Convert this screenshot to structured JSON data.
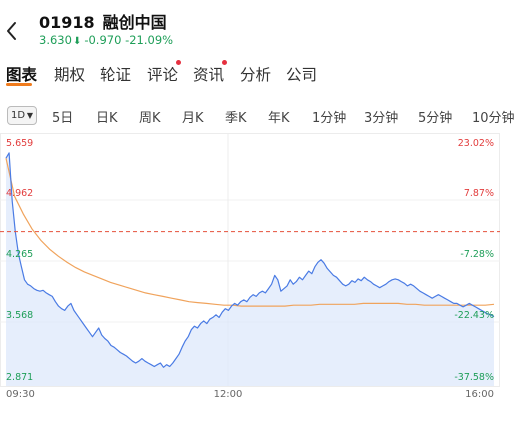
{
  "header": {
    "back_icon": "chevron-left-icon",
    "code": "01918",
    "name": "融创中国",
    "price": "3.630",
    "change": "-0.970",
    "change_pct": "-21.09%",
    "quote_color": "#1e9e58"
  },
  "tabs": [
    {
      "label": "图表",
      "active": true
    },
    {
      "label": "期权"
    },
    {
      "label": "轮证"
    },
    {
      "label": "评论",
      "dot": true
    },
    {
      "label": "资讯",
      "dot": true
    },
    {
      "label": "分析"
    },
    {
      "label": "公司"
    }
  ],
  "period_selector": {
    "label": "1D"
  },
  "periods": [
    "5日",
    "日K",
    "周K",
    "月K",
    "季K",
    "年K",
    "1分钟",
    "3分钟",
    "5分钟",
    "10分钟"
  ],
  "colors": {
    "price_line": "#4a7be4",
    "price_fill": "#dde8fb",
    "avg_line": "#f0a35c",
    "prev_close_line": "#e5513b",
    "up": "#e23c3c",
    "down": "#1e9e58",
    "accent": "#f07b1c"
  },
  "chart_data": {
    "type": "line",
    "x_labels": [
      "09:30",
      "12:00",
      "16:00"
    ],
    "y_labels_left": [
      "5.659",
      "4.962",
      "4.265",
      "3.568",
      "2.871"
    ],
    "y_labels_right": [
      "23.02%",
      "7.87%",
      "-7.28%",
      "-22.43%",
      "-37.58%"
    ],
    "ylim": [
      2.871,
      5.659
    ],
    "prev_close": 4.6,
    "series": [
      {
        "values": [
          5.44,
          5.5,
          4.95,
          4.6,
          4.35,
          4.2,
          4.05,
          4.0,
          3.98,
          3.95,
          3.93,
          3.92,
          3.93,
          3.9,
          3.88,
          3.86,
          3.8,
          3.75,
          3.72,
          3.7,
          3.75,
          3.78,
          3.7,
          3.65,
          3.6,
          3.55,
          3.5,
          3.45,
          3.4,
          3.45,
          3.5,
          3.42,
          3.38,
          3.35,
          3.3,
          3.28,
          3.25,
          3.22,
          3.2,
          3.18,
          3.15,
          3.12,
          3.1,
          3.12,
          3.15,
          3.12,
          3.1,
          3.08,
          3.06,
          3.08,
          3.1,
          3.05,
          3.08,
          3.06,
          3.1,
          3.15,
          3.2,
          3.28,
          3.35,
          3.4,
          3.48,
          3.52,
          3.5,
          3.55,
          3.58,
          3.55,
          3.6,
          3.62,
          3.65,
          3.62,
          3.68,
          3.72,
          3.7,
          3.75,
          3.78,
          3.76,
          3.8,
          3.82,
          3.8,
          3.85,
          3.88,
          3.86,
          3.9,
          3.92,
          3.9,
          3.95,
          4.0,
          4.1,
          4.05,
          3.92,
          3.95,
          3.98,
          4.05,
          4.0,
          4.03,
          4.08,
          4.05,
          4.1,
          4.15,
          4.12,
          4.2,
          4.25,
          4.28,
          4.24,
          4.18,
          4.14,
          4.1,
          4.08,
          4.04,
          4.0,
          3.98,
          4.0,
          4.04,
          4.02,
          4.06,
          4.04,
          4.08,
          4.05,
          4.03,
          4.0,
          3.98,
          3.96,
          3.98,
          4.0,
          4.03,
          4.05,
          4.06,
          4.05,
          4.03,
          4.01,
          3.98,
          4.0,
          3.98,
          3.95,
          3.92,
          3.9,
          3.88,
          3.86,
          3.84,
          3.86,
          3.88,
          3.86,
          3.84,
          3.82,
          3.8,
          3.78,
          3.78,
          3.76,
          3.74,
          3.76,
          3.78,
          3.76,
          3.74,
          3.72,
          3.7,
          3.68,
          3.66,
          3.65,
          3.63
        ]
      },
      {
        "values": [
          5.44,
          5.0,
          4.8,
          4.63,
          4.5,
          4.4,
          4.32,
          4.25,
          4.19,
          4.14,
          4.1,
          4.06,
          4.02,
          3.99,
          3.96,
          3.93,
          3.9,
          3.88,
          3.86,
          3.84,
          3.82,
          3.8,
          3.79,
          3.78,
          3.77,
          3.76,
          3.76,
          3.75,
          3.75,
          3.75,
          3.75,
          3.75,
          3.75,
          3.76,
          3.76,
          3.76,
          3.77,
          3.77,
          3.77,
          3.77,
          3.77,
          3.78,
          3.78,
          3.78,
          3.78,
          3.78,
          3.77,
          3.77,
          3.76,
          3.76,
          3.76,
          3.76,
          3.76,
          3.76,
          3.76,
          3.76,
          3.77
        ]
      }
    ]
  }
}
